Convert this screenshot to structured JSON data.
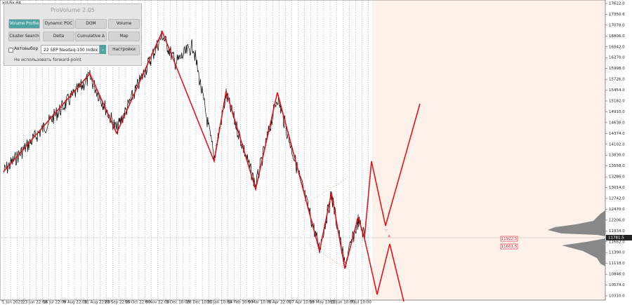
{
  "header": {
    "symbol": "xnUSx,H4"
  },
  "panel": {
    "title": "ProVolume 2.05",
    "buttons": [
      [
        "Volume Profile",
        "Dynamic POC",
        "DOM",
        "Volume"
      ],
      [
        "Cluster Search",
        "Delta",
        "Cumulative Δ",
        "Map"
      ]
    ],
    "checkbox": "Автовыбор",
    "instrument": "22 SEP Nasdaq-100 Index",
    "settings": "Настройки",
    "forward_point": "Не использовать forward-point"
  },
  "price_axis": [
    "17622.0",
    "17350.6",
    "17078.0",
    "16806.0",
    "16542.0",
    "16270.0",
    "15998.0",
    "15726.0",
    "15454.0",
    "15182.0",
    "14910.0",
    "14638.0",
    "14374.0",
    "14102.0",
    "13830.0",
    "13558.0",
    "13286.0",
    "13014.0",
    "12742.0",
    "12470.0",
    "12206.0",
    "11934.0",
    "11662.0",
    "11390.0",
    "11118.0",
    "10846.0",
    "10574.0",
    "10310.0"
  ],
  "current_price": "11781.5",
  "level_tags": [
    "11922.5",
    "11661.5"
  ],
  "time_axis": [
    "1 Jun 2021",
    "23 Jun 22:00",
    "16 Jul 22:00",
    "9 Aug 22:00",
    "31 Aug 22:00",
    "23 Sep 22:00",
    "15 Oct 22:00",
    "9 Nov 22:00",
    "3 Dec 10:00",
    "28 Dec 10:00",
    "21 Jan 10:00",
    "14 Feb 10:00",
    "9 Mar 10:00",
    "1 Apr 22:00",
    "27 Apr 10:00",
    "19 May 10:00",
    "13 Jun 10:00",
    "7 Jul 10:00"
  ]
}
